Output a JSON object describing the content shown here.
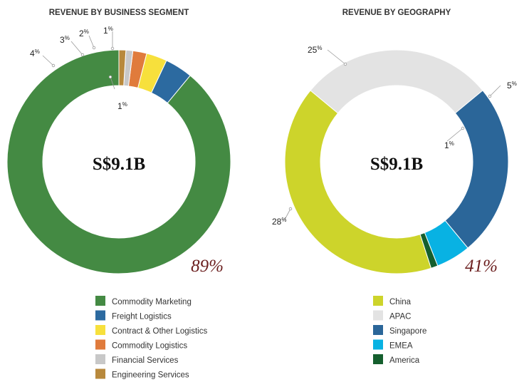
{
  "chart_data": [
    {
      "type": "pie",
      "title": "REVENUE BY BUSINESS SEGMENT",
      "center_text": "S$9.1B",
      "big_label": "89%",
      "categories": [
        "Commodity Marketing",
        "Freight Logistics",
        "Contract  & Other Logistics",
        "Commodity Logistics",
        "Financial Services",
        "Engineering Services"
      ],
      "values": [
        89,
        4,
        3,
        2,
        1,
        1
      ],
      "colors": [
        "#448a43",
        "#2c6aa0",
        "#f7e03c",
        "#e07b3c",
        "#c8c8c8",
        "#b8893c"
      ],
      "labels": [
        {
          "num": "4",
          "sign": "%"
        },
        {
          "num": "3",
          "sign": "%"
        },
        {
          "num": "2",
          "sign": "%"
        },
        {
          "num": "1",
          "sign": "%"
        },
        {
          "num": "1",
          "sign": "%"
        }
      ]
    },
    {
      "type": "pie",
      "title": "REVENUE BY GEOGRAPHY",
      "center_text": "S$9.1B",
      "big_label": "41%",
      "categories": [
        "China",
        "APAC",
        "Singapore",
        "EMEA",
        "America"
      ],
      "values": [
        41,
        28,
        25,
        5,
        1
      ],
      "colors": [
        "#cdd42b",
        "#e3e3e3",
        "#2b6699",
        "#08b2e3",
        "#155f2e"
      ],
      "labels": [
        {
          "num": "28",
          "sign": "%"
        },
        {
          "num": "25",
          "sign": "%"
        },
        {
          "num": "5",
          "sign": "%"
        },
        {
          "num": "1",
          "sign": "%"
        }
      ]
    }
  ]
}
